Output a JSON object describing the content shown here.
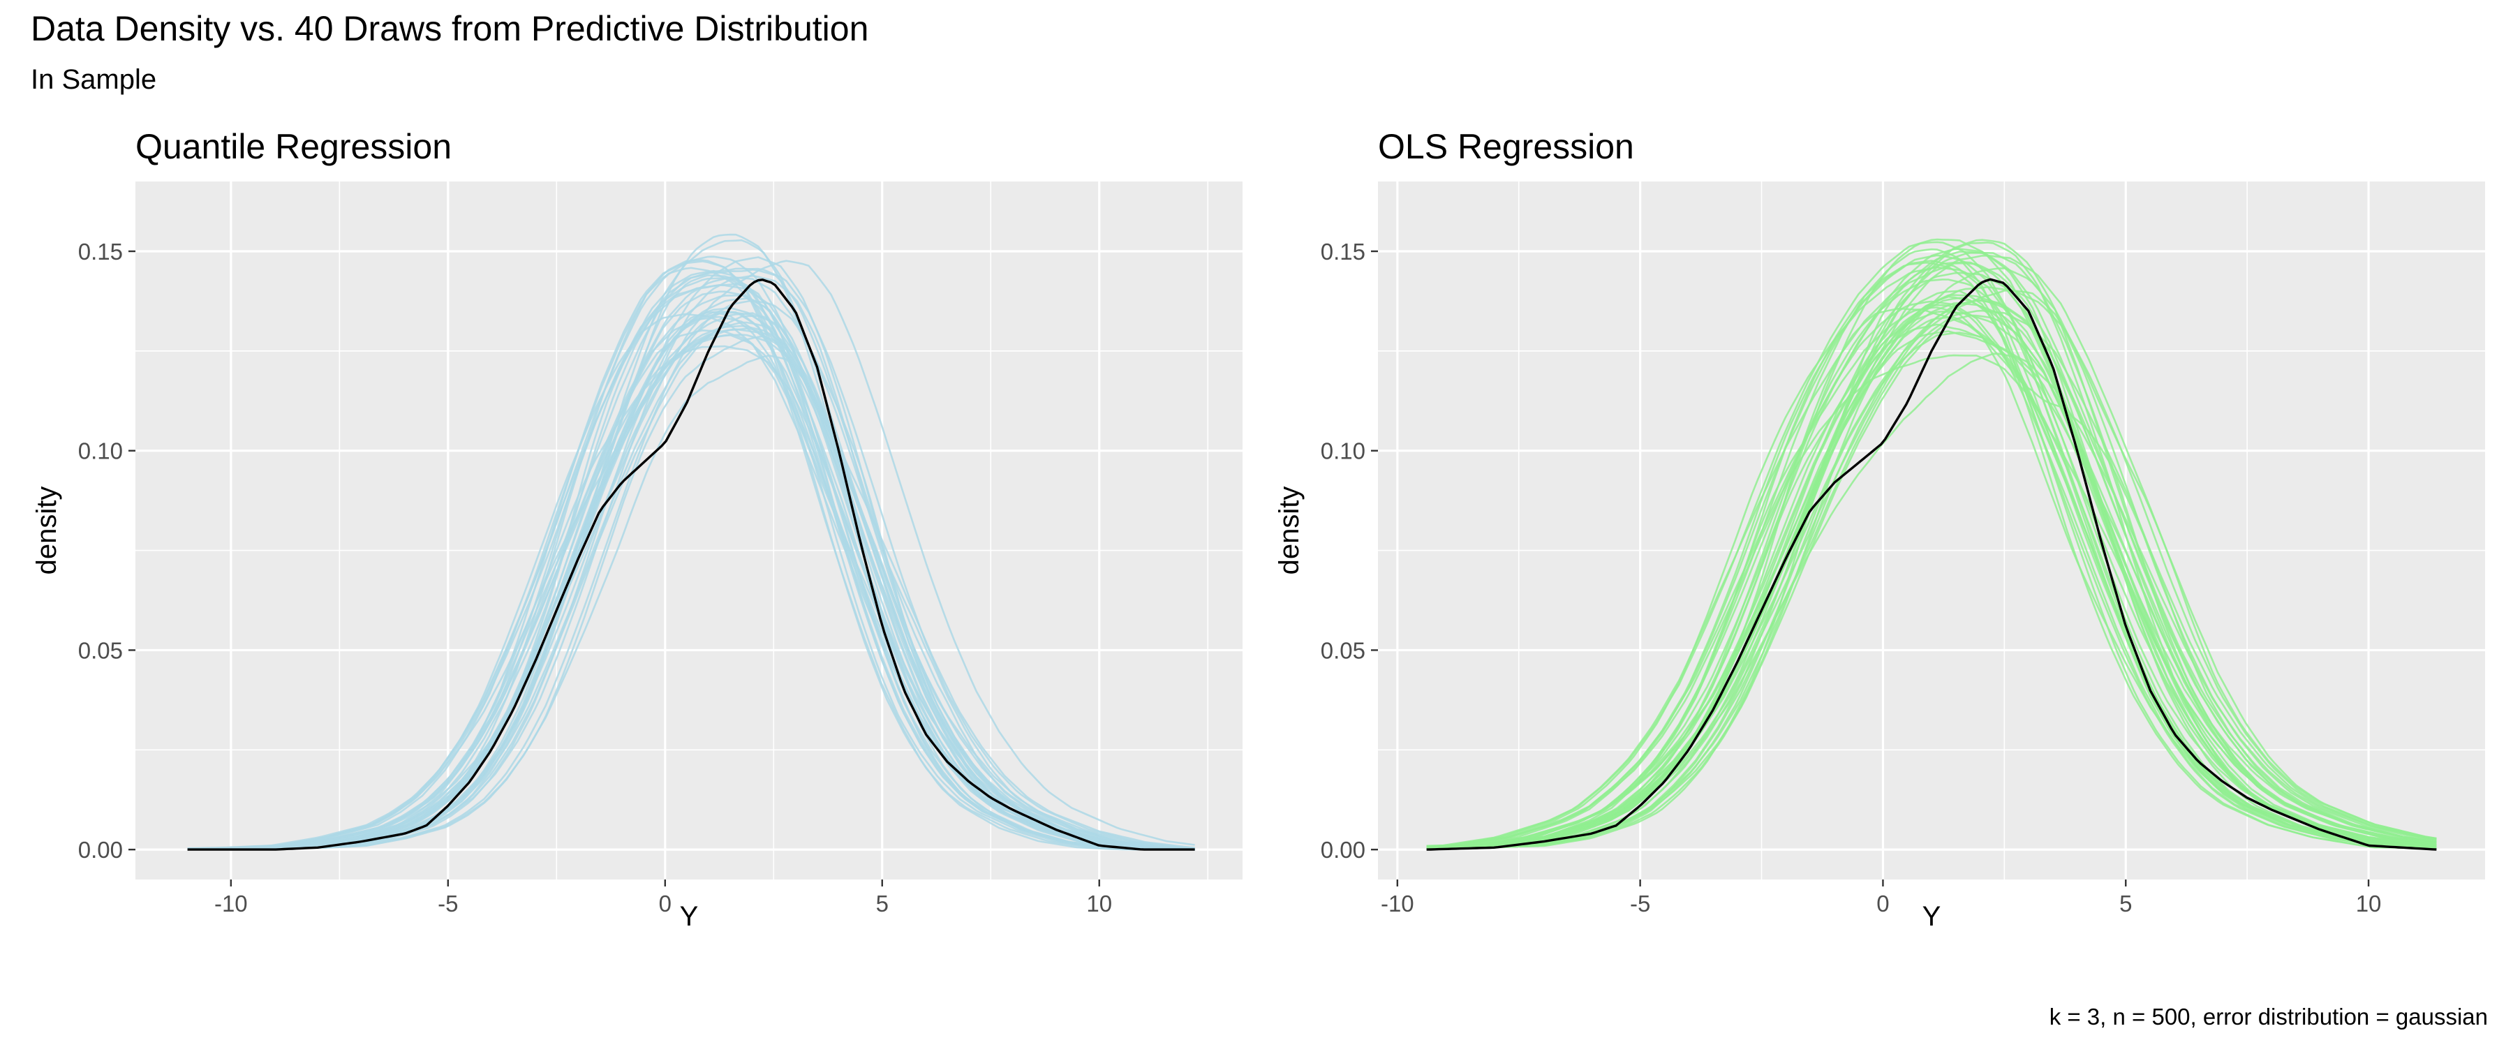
{
  "figure": {
    "title": "Data Density vs. 40 Draws from Predictive Distribution",
    "subtitle": "In Sample",
    "caption": "k = 3, n = 500, error distribution = gaussian"
  },
  "chart_data": [
    {
      "type": "line",
      "title": "Quantile Regression",
      "xlabel": "Y",
      "ylabel": "density",
      "xlim": [
        -12.2,
        13.3
      ],
      "ylim": [
        -0.0075,
        0.1675
      ],
      "x_ticks": [
        -10,
        -5,
        0,
        5,
        10
      ],
      "x_tick_labels": [
        "-10",
        "-5",
        "0",
        "5",
        "10"
      ],
      "y_ticks": [
        0,
        0.05,
        0.1,
        0.15
      ],
      "y_tick_labels": [
        "0.00",
        "0.05",
        "0.10",
        "0.15"
      ],
      "grid": true,
      "series": [
        {
          "role": "data-density",
          "color": "#000000",
          "x": [
            -11,
            -9,
            -8,
            -7,
            -6,
            -5.5,
            -5,
            -4.5,
            -4,
            -3.5,
            -3,
            -2.5,
            -2,
            -1.5,
            -1,
            -0.5,
            0,
            0.5,
            1,
            1.5,
            2,
            2.2,
            2.5,
            3,
            3.5,
            4,
            4.5,
            5,
            5.5,
            6,
            6.5,
            7,
            7.5,
            8,
            9,
            10,
            11,
            12.2
          ],
          "y": [
            0,
            0,
            0.0005,
            0.002,
            0.004,
            0.006,
            0.011,
            0.017,
            0.025,
            0.035,
            0.047,
            0.06,
            0.073,
            0.085,
            0.092,
            0.097,
            0.102,
            0.112,
            0.125,
            0.136,
            0.142,
            0.143,
            0.142,
            0.135,
            0.121,
            0.1,
            0.077,
            0.056,
            0.04,
            0.029,
            0.022,
            0.017,
            0.013,
            0.01,
            0.005,
            0.001,
            0,
            0
          ]
        },
        {
          "role": "predictive-draws",
          "color": "#add8e6",
          "count": 40,
          "base_x": [
            -11,
            -9,
            -8,
            -7,
            -6,
            -5.5,
            -5,
            -4.5,
            -4,
            -3.5,
            -3,
            -2.5,
            -2,
            -1.5,
            -1,
            -0.5,
            0,
            0.5,
            1,
            1.5,
            2,
            2.5,
            3,
            3.5,
            4,
            4.5,
            5,
            5.5,
            6,
            6.5,
            7,
            7.5,
            8,
            9,
            10,
            11,
            12.2
          ],
          "base_y": [
            0,
            0.0005,
            0.001,
            0.003,
            0.006,
            0.009,
            0.013,
            0.019,
            0.027,
            0.037,
            0.05,
            0.064,
            0.079,
            0.094,
            0.108,
            0.12,
            0.13,
            0.136,
            0.139,
            0.14,
            0.139,
            0.135,
            0.126,
            0.113,
            0.098,
            0.082,
            0.066,
            0.051,
            0.038,
            0.028,
            0.02,
            0.014,
            0.01,
            0.005,
            0.002,
            0.0005,
            0
          ]
        }
      ]
    },
    {
      "type": "line",
      "title": "OLS Regression",
      "xlabel": "Y",
      "ylabel": "density",
      "xlim": [
        -10.4,
        12.4
      ],
      "ylim": [
        -0.0075,
        0.1675
      ],
      "x_ticks": [
        -10,
        -5,
        0,
        5,
        10
      ],
      "x_tick_labels": [
        "-10",
        "-5",
        "0",
        "5",
        "10"
      ],
      "y_ticks": [
        0,
        0.05,
        0.1,
        0.15
      ],
      "y_tick_labels": [
        "0.00",
        "0.05",
        "0.10",
        "0.15"
      ],
      "grid": true,
      "series": [
        {
          "role": "data-density",
          "color": "#000000",
          "x": [
            -9.4,
            -8,
            -7,
            -6,
            -5.5,
            -5,
            -4.5,
            -4,
            -3.5,
            -3,
            -2.5,
            -2,
            -1.5,
            -1,
            -0.5,
            0,
            0.5,
            1,
            1.5,
            2,
            2.2,
            2.5,
            3,
            3.5,
            4,
            4.5,
            5,
            5.5,
            6,
            6.5,
            7,
            7.5,
            8,
            9,
            10,
            11.4
          ],
          "y": [
            0,
            0.0005,
            0.002,
            0.004,
            0.006,
            0.011,
            0.017,
            0.025,
            0.035,
            0.047,
            0.06,
            0.073,
            0.085,
            0.092,
            0.097,
            0.102,
            0.112,
            0.125,
            0.136,
            0.142,
            0.143,
            0.142,
            0.135,
            0.121,
            0.1,
            0.077,
            0.056,
            0.04,
            0.029,
            0.022,
            0.017,
            0.013,
            0.01,
            0.005,
            0.001,
            0
          ]
        },
        {
          "role": "predictive-draws",
          "color": "#90ee90",
          "count": 40,
          "base_x": [
            -9.4,
            -8,
            -7,
            -6,
            -5.5,
            -5,
            -4.5,
            -4,
            -3.5,
            -3,
            -2.5,
            -2,
            -1.5,
            -1,
            -0.5,
            0,
            0.5,
            1,
            1.5,
            2,
            2.5,
            3,
            3.5,
            4,
            4.5,
            5,
            5.5,
            6,
            6.5,
            7,
            7.5,
            8,
            9,
            10,
            11.4
          ],
          "base_y": [
            0.0005,
            0.001,
            0.003,
            0.007,
            0.01,
            0.015,
            0.021,
            0.029,
            0.039,
            0.052,
            0.066,
            0.081,
            0.096,
            0.109,
            0.12,
            0.129,
            0.135,
            0.139,
            0.14,
            0.139,
            0.135,
            0.127,
            0.114,
            0.099,
            0.083,
            0.067,
            0.052,
            0.039,
            0.029,
            0.021,
            0.015,
            0.011,
            0.006,
            0.003,
            0.0005
          ]
        }
      ]
    }
  ]
}
